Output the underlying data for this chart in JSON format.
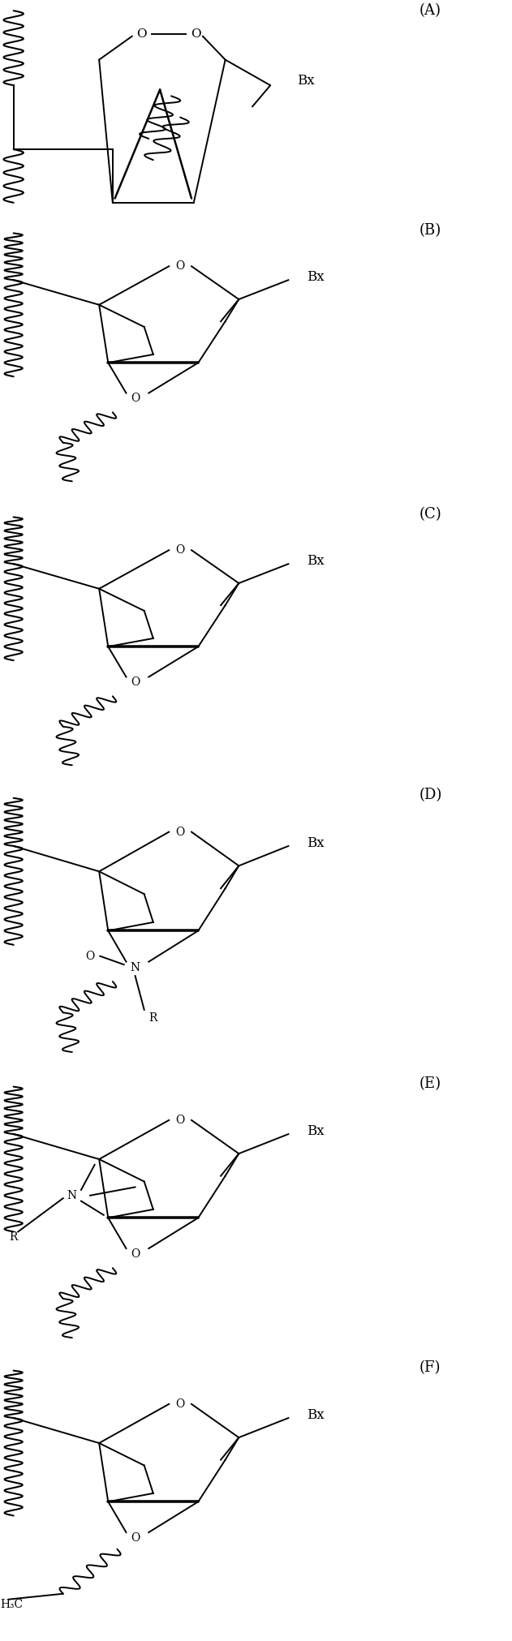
{
  "background_color": "#ffffff",
  "panels": [
    "(A)",
    "(B)",
    "(C)",
    "(D)",
    "(E)",
    "(F)"
  ],
  "panel_label_fontsize": 13,
  "fig_width": 6.31,
  "fig_height": 20.23,
  "lw": 1.4
}
